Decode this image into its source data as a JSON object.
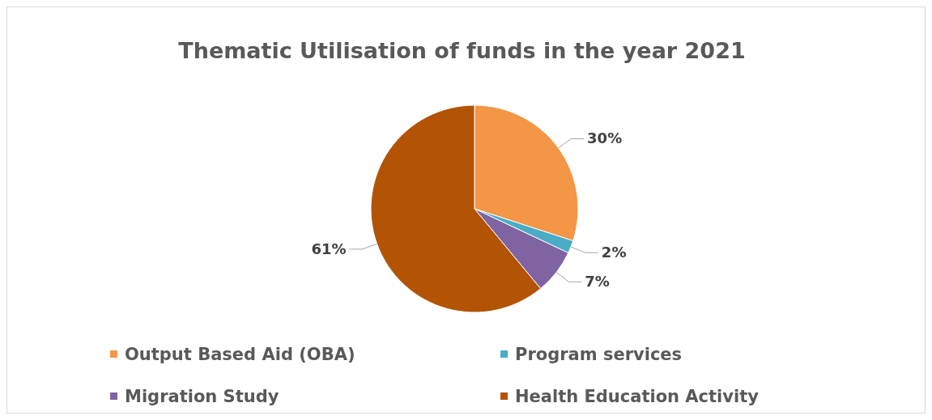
{
  "chart_data": {
    "type": "pie",
    "title": "Thematic Utilisation of funds in the year 2021",
    "categories": [
      "Output Based Aid (OBA)",
      "Program services",
      "Migration Study",
      "Health Education Activity"
    ],
    "values": [
      30,
      2,
      7,
      61
    ],
    "colors": [
      "#f39646",
      "#4bacc6",
      "#8064a2",
      "#b35304"
    ],
    "value_labels": [
      "30%",
      "2%",
      "7%",
      "61%"
    ],
    "legend": "bottom"
  }
}
